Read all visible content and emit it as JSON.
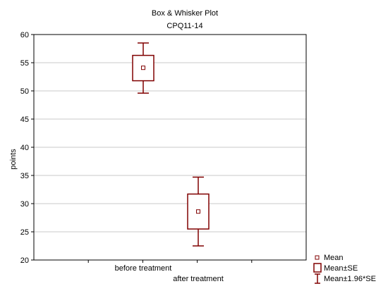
{
  "chart_data": {
    "type": "box",
    "title": "Box & Whisker Plot",
    "subtitle": "CPQ11-14",
    "xlabel": "",
    "ylabel": "points",
    "ylim": [
      20,
      60
    ],
    "yticks": [
      20,
      25,
      30,
      35,
      40,
      45,
      50,
      55,
      60
    ],
    "grid": true,
    "legend_position": "bottom-right",
    "categories": [
      "before treatment",
      "after treatment"
    ],
    "series": [
      {
        "category": "before treatment",
        "mean": 54.1,
        "se_low": 51.8,
        "se_high": 56.3,
        "ci_low": 49.6,
        "ci_high": 58.5
      },
      {
        "category": "after treatment",
        "mean": 28.6,
        "se_low": 25.5,
        "se_high": 31.7,
        "ci_low": 22.5,
        "ci_high": 34.7
      }
    ],
    "legend": [
      "Mean",
      "Mean±SE",
      "Mean±1.96*SE"
    ],
    "colors": {
      "box": "#800000",
      "grid": "#c8c8c8"
    }
  }
}
